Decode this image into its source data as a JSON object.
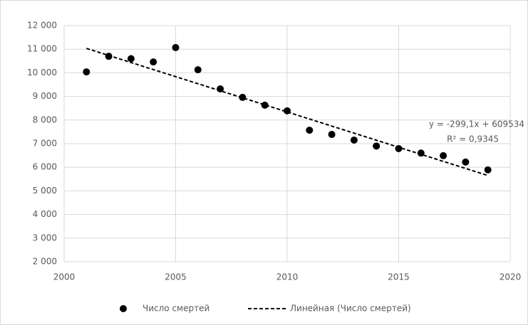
{
  "chart_data": {
    "type": "scatter",
    "x": [
      2001,
      2002,
      2003,
      2004,
      2005,
      2006,
      2007,
      2008,
      2009,
      2010,
      2011,
      2012,
      2013,
      2014,
      2015,
      2016,
      2017,
      2018,
      2019
    ],
    "series": [
      {
        "name": "Число смертей",
        "color": "#000000",
        "values": [
          10040,
          10700,
          10600,
          10460,
          11070,
          10130,
          9320,
          8960,
          8630,
          8390,
          7570,
          7390,
          7150,
          6900,
          6790,
          6600,
          6490,
          6220,
          5890
        ]
      }
    ],
    "trendline": {
      "name": "Линейная (Число смертей)",
      "color": "#000000",
      "slope": -299.1,
      "intercept": 609534,
      "equation": "y = -299,1x + 609534",
      "r2": "R² = 0,9345"
    },
    "xlim": [
      2000,
      2020
    ],
    "xticks": [
      2000,
      2005,
      2010,
      2015,
      2020
    ],
    "ylim": [
      2000,
      12000
    ],
    "yticks": [
      {
        "value": 2000,
        "label": "2 000"
      },
      {
        "value": 3000,
        "label": "3 000"
      },
      {
        "value": 4000,
        "label": "4 000"
      },
      {
        "value": 5000,
        "label": "5 000"
      },
      {
        "value": 6000,
        "label": "6 000"
      },
      {
        "value": 7000,
        "label": "7 000"
      },
      {
        "value": 8000,
        "label": "8 000"
      },
      {
        "value": 9000,
        "label": "9 000"
      },
      {
        "value": 10000,
        "label": "10 000"
      },
      {
        "value": 11000,
        "label": "11 000"
      },
      {
        "value": 12000,
        "label": "12 000"
      }
    ],
    "grid": true,
    "legend": "bottom"
  }
}
